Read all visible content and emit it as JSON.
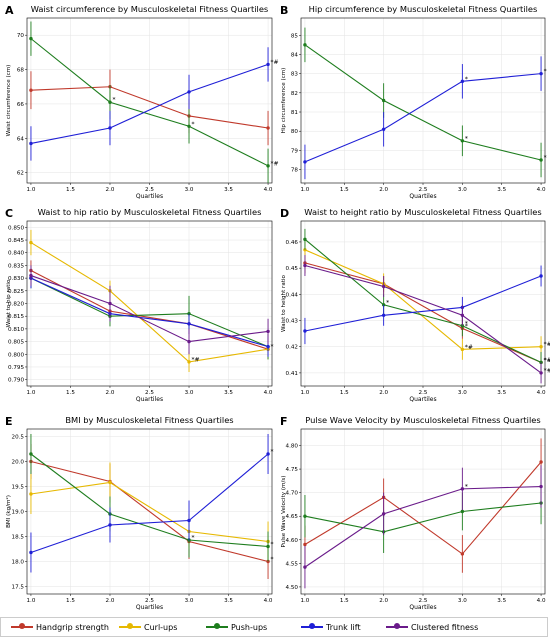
{
  "legend": [
    {
      "name": "Handgrip strength",
      "color": "#c0392b"
    },
    {
      "name": "Curl-ups",
      "color": "#e6b800"
    },
    {
      "name": "Push-ups",
      "color": "#1e7d1e"
    },
    {
      "name": "Trunk lift",
      "color": "#1f1fd6"
    },
    {
      "name": "Clustered fitness",
      "color": "#6a1b8a"
    }
  ],
  "chart_data": [
    {
      "letter": "A",
      "type": "line",
      "title": "Waist circumference by Musculoskeletal Fitness Quartiles",
      "xlabel": "Quartiles",
      "ylabel": "Waist circumference (cm)",
      "x": [
        1,
        2,
        3,
        4
      ],
      "xticks": [
        "1.0",
        "1.5",
        "2.0",
        "2.5",
        "3.0",
        "3.5",
        "4.0"
      ],
      "xlim": [
        0.95,
        4.05
      ],
      "ylim": [
        61.4,
        71.0
      ],
      "yticks": [
        "62",
        "64",
        "66",
        "68",
        "70"
      ],
      "grid": true,
      "series": [
        {
          "name": "Handgrip strength",
          "values": [
            66.8,
            67.0,
            65.3,
            64.6
          ],
          "err": [
            1.1,
            1.0,
            1.0,
            1.0
          ],
          "marks": [
            "",
            "",
            "",
            ""
          ]
        },
        {
          "name": "Push-ups",
          "values": [
            69.8,
            66.1,
            64.7,
            62.4
          ],
          "err": [
            1.0,
            1.0,
            1.0,
            1.0
          ],
          "marks": [
            "",
            "*",
            "*",
            "*#"
          ]
        },
        {
          "name": "Trunk lift",
          "values": [
            63.7,
            64.6,
            66.7,
            68.3
          ],
          "err": [
            1.0,
            1.0,
            1.0,
            1.0
          ],
          "marks": [
            "",
            "",
            "",
            "*#"
          ]
        }
      ]
    },
    {
      "letter": "B",
      "type": "line",
      "title": "Hip circumference by Musculoskeletal Fitness Quartiles",
      "xlabel": "Quartiles",
      "ylabel": "Hip circumference (cm)",
      "x": [
        1,
        2,
        3,
        4
      ],
      "xticks": [
        "1.0",
        "1.5",
        "2.0",
        "2.5",
        "3.0",
        "3.5",
        "4.0"
      ],
      "xlim": [
        0.95,
        4.05
      ],
      "ylim": [
        77.3,
        85.9
      ],
      "yticks": [
        "78",
        "79",
        "80",
        "81",
        "82",
        "83",
        "84",
        "85"
      ],
      "grid": true,
      "series": [
        {
          "name": "Push-ups",
          "values": [
            84.5,
            81.6,
            79.5,
            78.5
          ],
          "err": [
            0.9,
            0.9,
            0.8,
            0.9
          ],
          "marks": [
            "",
            "",
            "*",
            "*"
          ]
        },
        {
          "name": "Trunk lift",
          "values": [
            78.4,
            80.1,
            82.6,
            83.0
          ],
          "err": [
            0.9,
            0.9,
            0.9,
            0.9
          ],
          "marks": [
            "",
            "",
            "*",
            "*"
          ]
        }
      ]
    },
    {
      "letter": "C",
      "type": "line",
      "title": "Waist to hip ratio by Musculoskeletal Fitness Quartiles",
      "xlabel": "Quartiles",
      "ylabel": "Waist to hip ratio",
      "x": [
        1,
        2,
        3,
        4
      ],
      "xticks": [
        "1.0",
        "1.5",
        "2.0",
        "2.5",
        "3.0",
        "3.5",
        "4.0"
      ],
      "xlim": [
        0.95,
        4.05
      ],
      "ylim": [
        0.7875,
        0.8525
      ],
      "yticks": [
        "0.790",
        "0.795",
        "0.800",
        "0.805",
        "0.810",
        "0.815",
        "0.820",
        "0.825",
        "0.830",
        "0.835",
        "0.840",
        "0.845",
        "0.850"
      ],
      "grid": true,
      "series": [
        {
          "name": "Handgrip strength",
          "values": [
            0.833,
            0.817,
            0.812,
            0.802
          ],
          "err": [
            0.004,
            0.004,
            0.004,
            0.004
          ],
          "marks": [
            "",
            "",
            "",
            ""
          ]
        },
        {
          "name": "Curl-ups",
          "values": [
            0.844,
            0.825,
            0.797,
            0.802
          ],
          "err": [
            0.005,
            0.004,
            0.004,
            0.004
          ],
          "marks": [
            "",
            "",
            "*#",
            "*"
          ]
        },
        {
          "name": "Push-ups",
          "values": [
            0.83,
            0.815,
            0.816,
            0.803
          ],
          "err": [
            0.004,
            0.004,
            0.007,
            0.005
          ],
          "marks": [
            "",
            "",
            "",
            ""
          ]
        },
        {
          "name": "Trunk lift",
          "values": [
            0.83,
            0.816,
            0.812,
            0.803
          ],
          "err": [
            0.004,
            0.003,
            0.004,
            0.004
          ],
          "marks": [
            "",
            "",
            "",
            ""
          ]
        },
        {
          "name": "Clustered fitness",
          "values": [
            0.831,
            0.82,
            0.805,
            0.809
          ],
          "err": [
            0.004,
            0.007,
            0.005,
            0.005
          ],
          "marks": [
            "",
            "",
            "",
            ""
          ]
        }
      ]
    },
    {
      "letter": "D",
      "type": "line",
      "title": "Waist to height ratio by Musculoskeletal Fitness Quartiles",
      "xlabel": "Quartiles",
      "ylabel": "Waist to height ratio",
      "x": [
        1,
        2,
        3,
        4
      ],
      "xticks": [
        "1.0",
        "1.5",
        "2.0",
        "2.5",
        "3.0",
        "3.5",
        "4.0"
      ],
      "xlim": [
        0.95,
        4.05
      ],
      "ylim": [
        0.405,
        0.468
      ],
      "yticks": [
        "0.41",
        "0.42",
        "0.43",
        "0.44",
        "0.45",
        "0.46"
      ],
      "grid": true,
      "series": [
        {
          "name": "Handgrip strength",
          "values": [
            0.452,
            0.444,
            0.427,
            0.414
          ],
          "err": [
            0.004,
            0.003,
            0.004,
            0.004
          ],
          "marks": [
            "",
            "",
            "*",
            "*#"
          ]
        },
        {
          "name": "Curl-ups",
          "values": [
            0.457,
            0.444,
            0.419,
            0.42
          ],
          "err": [
            0.004,
            0.004,
            0.004,
            0.004
          ],
          "marks": [
            "",
            "",
            "*#",
            "*#"
          ]
        },
        {
          "name": "Push-ups",
          "values": [
            0.461,
            0.436,
            0.428,
            0.414
          ],
          "err": [
            0.004,
            0.004,
            0.004,
            0.004
          ],
          "marks": [
            "",
            "*",
            "*",
            "*#"
          ]
        },
        {
          "name": "Trunk lift",
          "values": [
            0.426,
            0.432,
            0.435,
            0.447
          ],
          "err": [
            0.005,
            0.004,
            0.004,
            0.004
          ],
          "marks": [
            "",
            "",
            "",
            ""
          ]
        },
        {
          "name": "Clustered fitness",
          "values": [
            0.451,
            0.443,
            0.432,
            0.41
          ],
          "err": [
            0.004,
            0.004,
            0.004,
            0.004
          ],
          "marks": [
            "",
            "",
            "",
            "*#"
          ]
        }
      ]
    },
    {
      "letter": "E",
      "type": "line",
      "title": "BMI by Musculoskeletal Fitness Quartiles",
      "xlabel": "Quartiles",
      "ylabel": "BMI (kg/m²)",
      "x": [
        1,
        2,
        3,
        4
      ],
      "xticks": [
        "1.0",
        "1.5",
        "2.0",
        "2.5",
        "3.0",
        "3.5",
        "4.0"
      ],
      "xlim": [
        0.95,
        4.05
      ],
      "ylim": [
        17.35,
        20.65
      ],
      "yticks": [
        "17.5",
        "18.0",
        "18.5",
        "19.0",
        "19.5",
        "20.0",
        "20.5"
      ],
      "grid": true,
      "series": [
        {
          "name": "Handgrip strength",
          "values": [
            20.0,
            19.6,
            18.4,
            18.0
          ],
          "err": [
            0.35,
            0.35,
            0.35,
            0.35
          ],
          "marks": [
            "",
            "",
            "",
            "*"
          ]
        },
        {
          "name": "Curl-ups",
          "values": [
            19.35,
            19.58,
            18.6,
            18.4
          ],
          "err": [
            0.4,
            0.4,
            0.35,
            0.4
          ],
          "marks": [
            "",
            "",
            "",
            ""
          ]
        },
        {
          "name": "Push-ups",
          "values": [
            20.15,
            18.95,
            18.43,
            18.3
          ],
          "err": [
            0.4,
            0.35,
            0.35,
            0.3
          ],
          "marks": [
            "",
            "",
            "*",
            "*"
          ]
        },
        {
          "name": "Trunk lift",
          "values": [
            18.18,
            18.73,
            18.82,
            20.15
          ],
          "err": [
            0.4,
            0.35,
            0.4,
            0.4
          ],
          "marks": [
            "",
            "",
            "",
            "*"
          ]
        }
      ]
    },
    {
      "letter": "F",
      "type": "line",
      "title": "Pulse Wave Velocity by Musculoskeletal Fitness Quartiles",
      "xlabel": "Quartiles",
      "ylabel": "Pulse Wave Velocity (m/s)",
      "x": [
        1,
        2,
        3,
        4
      ],
      "xticks": [
        "1.0",
        "1.5",
        "2.0",
        "2.5",
        "3.0",
        "3.5",
        "4.0"
      ],
      "xlim": [
        0.95,
        4.05
      ],
      "ylim": [
        4.485,
        4.835
      ],
      "yticks": [
        "4.50",
        "4.55",
        "4.60",
        "4.65",
        "4.70",
        "4.75",
        "4.80"
      ],
      "grid": true,
      "series": [
        {
          "name": "Handgrip strength",
          "values": [
            4.59,
            4.69,
            4.57,
            4.765
          ],
          "err": [
            0.04,
            0.04,
            0.04,
            0.05
          ],
          "marks": [
            "",
            "",
            "",
            ""
          ]
        },
        {
          "name": "Push-ups",
          "values": [
            4.65,
            4.617,
            4.66,
            4.678
          ],
          "err": [
            0.045,
            0.045,
            0.04,
            0.045
          ],
          "marks": [
            "",
            "",
            "",
            ""
          ]
        },
        {
          "name": "Clustered fitness",
          "values": [
            4.542,
            4.655,
            4.708,
            4.713
          ],
          "err": [
            0.045,
            0.045,
            0.045,
            0.045
          ],
          "marks": [
            "",
            "",
            "*",
            ""
          ]
        }
      ]
    }
  ]
}
